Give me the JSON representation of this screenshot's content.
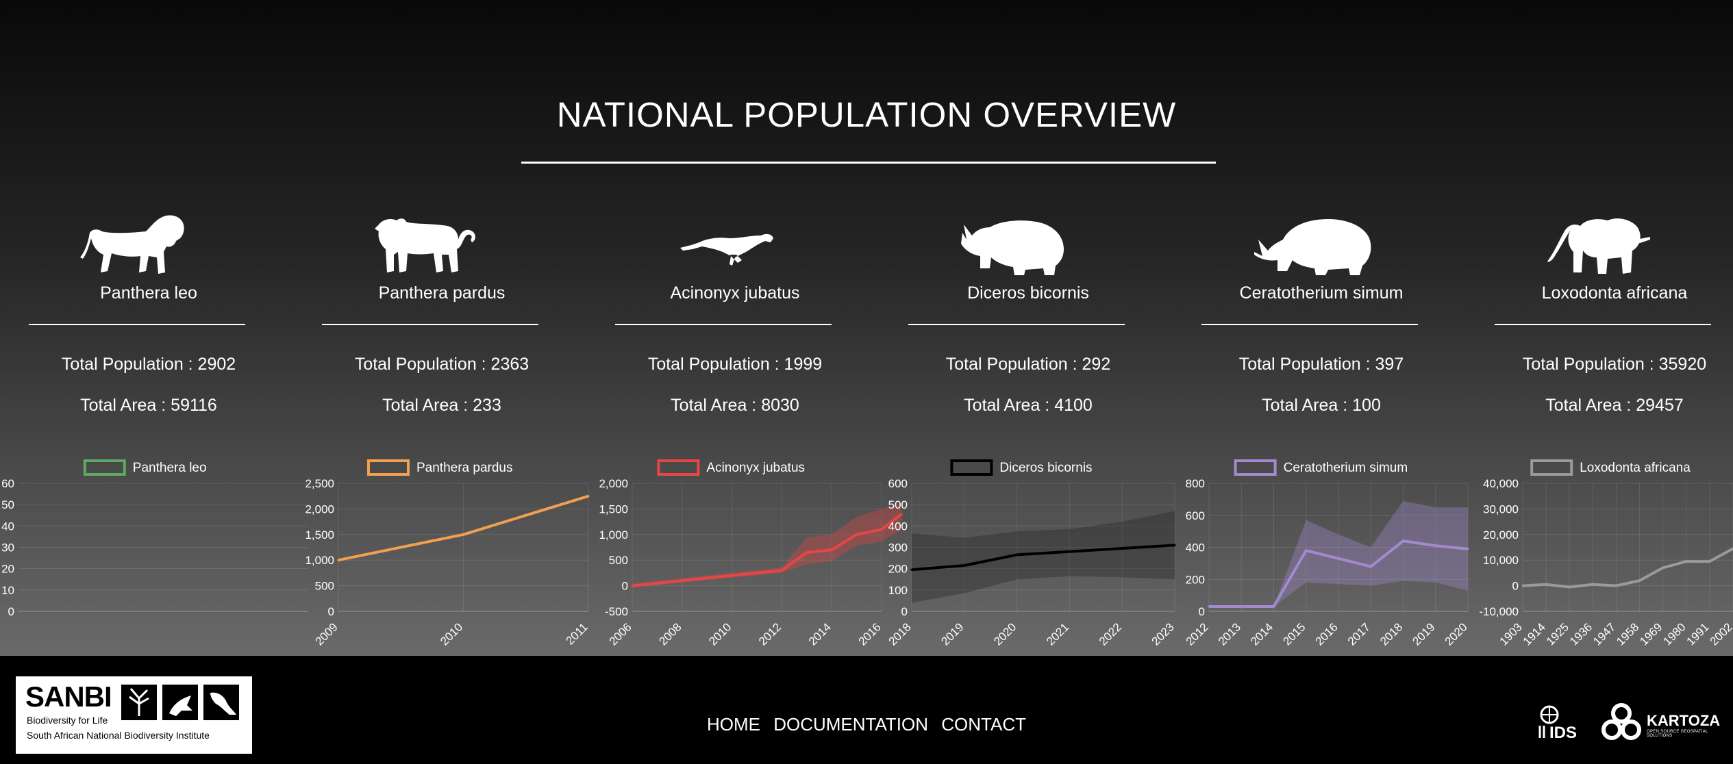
{
  "header": {
    "title": "NATIONAL POPULATION OVERVIEW"
  },
  "species": [
    {
      "name": "Panthera leo",
      "population_label": "Total Population : 2902",
      "area_label": "Total Area : 59116",
      "icon": "lion-silhouette-icon"
    },
    {
      "name": "Panthera pardus",
      "population_label": "Total Population : 2363",
      "area_label": "Total Area : 233",
      "icon": "leopard-silhouette-icon"
    },
    {
      "name": "Acinonyx jubatus",
      "population_label": "Total Population : 1999",
      "area_label": "Total Area : 8030",
      "icon": "cheetah-silhouette-icon"
    },
    {
      "name": "Diceros bicornis",
      "population_label": "Total Population : 292",
      "area_label": "Total Area : 4100",
      "icon": "black-rhino-silhouette-icon"
    },
    {
      "name": "Ceratotherium simum",
      "population_label": "Total Population : 397",
      "area_label": "Total Area : 100",
      "icon": "white-rhino-silhouette-icon"
    },
    {
      "name": "Loxodonta africana",
      "population_label": "Total Population : 35920",
      "area_label": "Total Area : 29457",
      "icon": "elephant-silhouette-icon"
    }
  ],
  "chart_data": [
    {
      "type": "line",
      "legend": "Panthera leo",
      "color": "#5fa85f",
      "x": [],
      "series": [
        {
          "name": "Panthera leo",
          "values": []
        }
      ],
      "yticks": [
        "60",
        "50",
        "40",
        "30",
        "20",
        "10",
        "0"
      ],
      "ylim": [
        0,
        60
      ],
      "xticks": [],
      "band": null,
      "legend_position": "top"
    },
    {
      "type": "line",
      "legend": "Panthera pardus",
      "color": "#f0a050",
      "x": [
        2009,
        2010,
        2011
      ],
      "series": [
        {
          "name": "Panthera pardus",
          "values": [
            1000,
            1500,
            2250
          ]
        }
      ],
      "yticks": [
        "2,500",
        "2,000",
        "1,500",
        "1,000",
        "500",
        "0"
      ],
      "ylim": [
        0,
        2500
      ],
      "xticks": [
        "2009",
        "2010",
        "2011"
      ],
      "band": null,
      "legend_position": "top"
    },
    {
      "type": "line",
      "legend": "Acinonyx jubatus",
      "color": "#e84545",
      "x": [
        2006,
        2012,
        2013,
        2014,
        2015,
        2016,
        2016.8
      ],
      "series": [
        {
          "name": "Acinonyx jubatus",
          "values": [
            0,
            300,
            650,
            700,
            1000,
            1100,
            1400
          ]
        }
      ],
      "band": {
        "lower": [
          -30,
          250,
          420,
          480,
          780,
          860,
          1100
        ],
        "upper": [
          40,
          360,
          950,
          1000,
          1350,
          1500,
          1600
        ]
      },
      "yticks": [
        "2,000",
        "1,500",
        "1,000",
        "500",
        "0",
        "-500"
      ],
      "ylim": [
        -500,
        2000
      ],
      "xticks": [
        "2006",
        "2008",
        "2010",
        "2012",
        "2014",
        "2016"
      ],
      "legend_position": "top"
    },
    {
      "type": "line",
      "legend": "Diceros bicornis",
      "color": "#000000",
      "x": [
        2018,
        2019,
        2020,
        2021,
        2022,
        2023
      ],
      "series": [
        {
          "name": "Diceros bicornis",
          "values": [
            195,
            215,
            265,
            280,
            295,
            310
          ]
        }
      ],
      "band": {
        "lower": [
          40,
          85,
          150,
          165,
          160,
          150
        ],
        "upper": [
          365,
          345,
          375,
          385,
          420,
          470
        ]
      },
      "yticks": [
        "600",
        "500",
        "400",
        "300",
        "200",
        "100",
        "0"
      ],
      "ylim": [
        0,
        600
      ],
      "xticks": [
        "2018",
        "2019",
        "2020",
        "2021",
        "2022",
        "2023"
      ],
      "legend_position": "top"
    },
    {
      "type": "line",
      "legend": "Ceratotherium simum",
      "color": "#a38ad0",
      "x": [
        2012,
        2013,
        2014,
        2015,
        2016,
        2017,
        2018,
        2019,
        2020
      ],
      "series": [
        {
          "name": "Ceratotherium simum",
          "values": [
            30,
            30,
            30,
            380,
            330,
            280,
            440,
            410,
            390
          ]
        }
      ],
      "band": {
        "lower": [
          30,
          30,
          30,
          180,
          170,
          160,
          190,
          180,
          130
        ],
        "upper": [
          30,
          30,
          30,
          570,
          480,
          400,
          690,
          650,
          650
        ]
      },
      "yticks": [
        "800",
        "600",
        "400",
        "200",
        "0"
      ],
      "ylim": [
        0,
        800
      ],
      "xticks": [
        "2012",
        "2013",
        "2014",
        "2015",
        "2016",
        "2017",
        "2018",
        "2019",
        "2020"
      ],
      "legend_position": "top"
    },
    {
      "type": "line",
      "legend": "Loxodonta africana",
      "color": "#9a9a9a",
      "x": [
        1903,
        1914,
        1925,
        1936,
        1947,
        1958,
        1969,
        1980,
        1991,
        2002
      ],
      "series": [
        {
          "name": "Loxodonta africana",
          "values": [
            0,
            500,
            -500,
            500,
            0,
            2000,
            7000,
            9500,
            9500,
            14500
          ]
        }
      ],
      "yticks": [
        "40,000",
        "30,000",
        "20,000",
        "10,000",
        "0",
        "-10,000"
      ],
      "ylim": [
        -10000,
        40000
      ],
      "xticks": [
        "1903",
        "1914",
        "1925",
        "1936",
        "1947",
        "1958",
        "1969",
        "1980",
        "1991",
        "2002"
      ],
      "band": null,
      "legend_position": "top"
    }
  ],
  "footer": {
    "logo_name": "SANBI",
    "logo_tagline": "Biodiversity for Life",
    "logo_fullname": "South African National Biodiversity Institute",
    "nav": [
      "HOME",
      "DOCUMENTATION",
      "CONTACT"
    ],
    "partner_ids": "IDS",
    "partner_kartoza": "KARTOZA",
    "partner_kartoza_sub": "OPEN SOURCE GEOSPATIAL SOLUTIONS"
  }
}
